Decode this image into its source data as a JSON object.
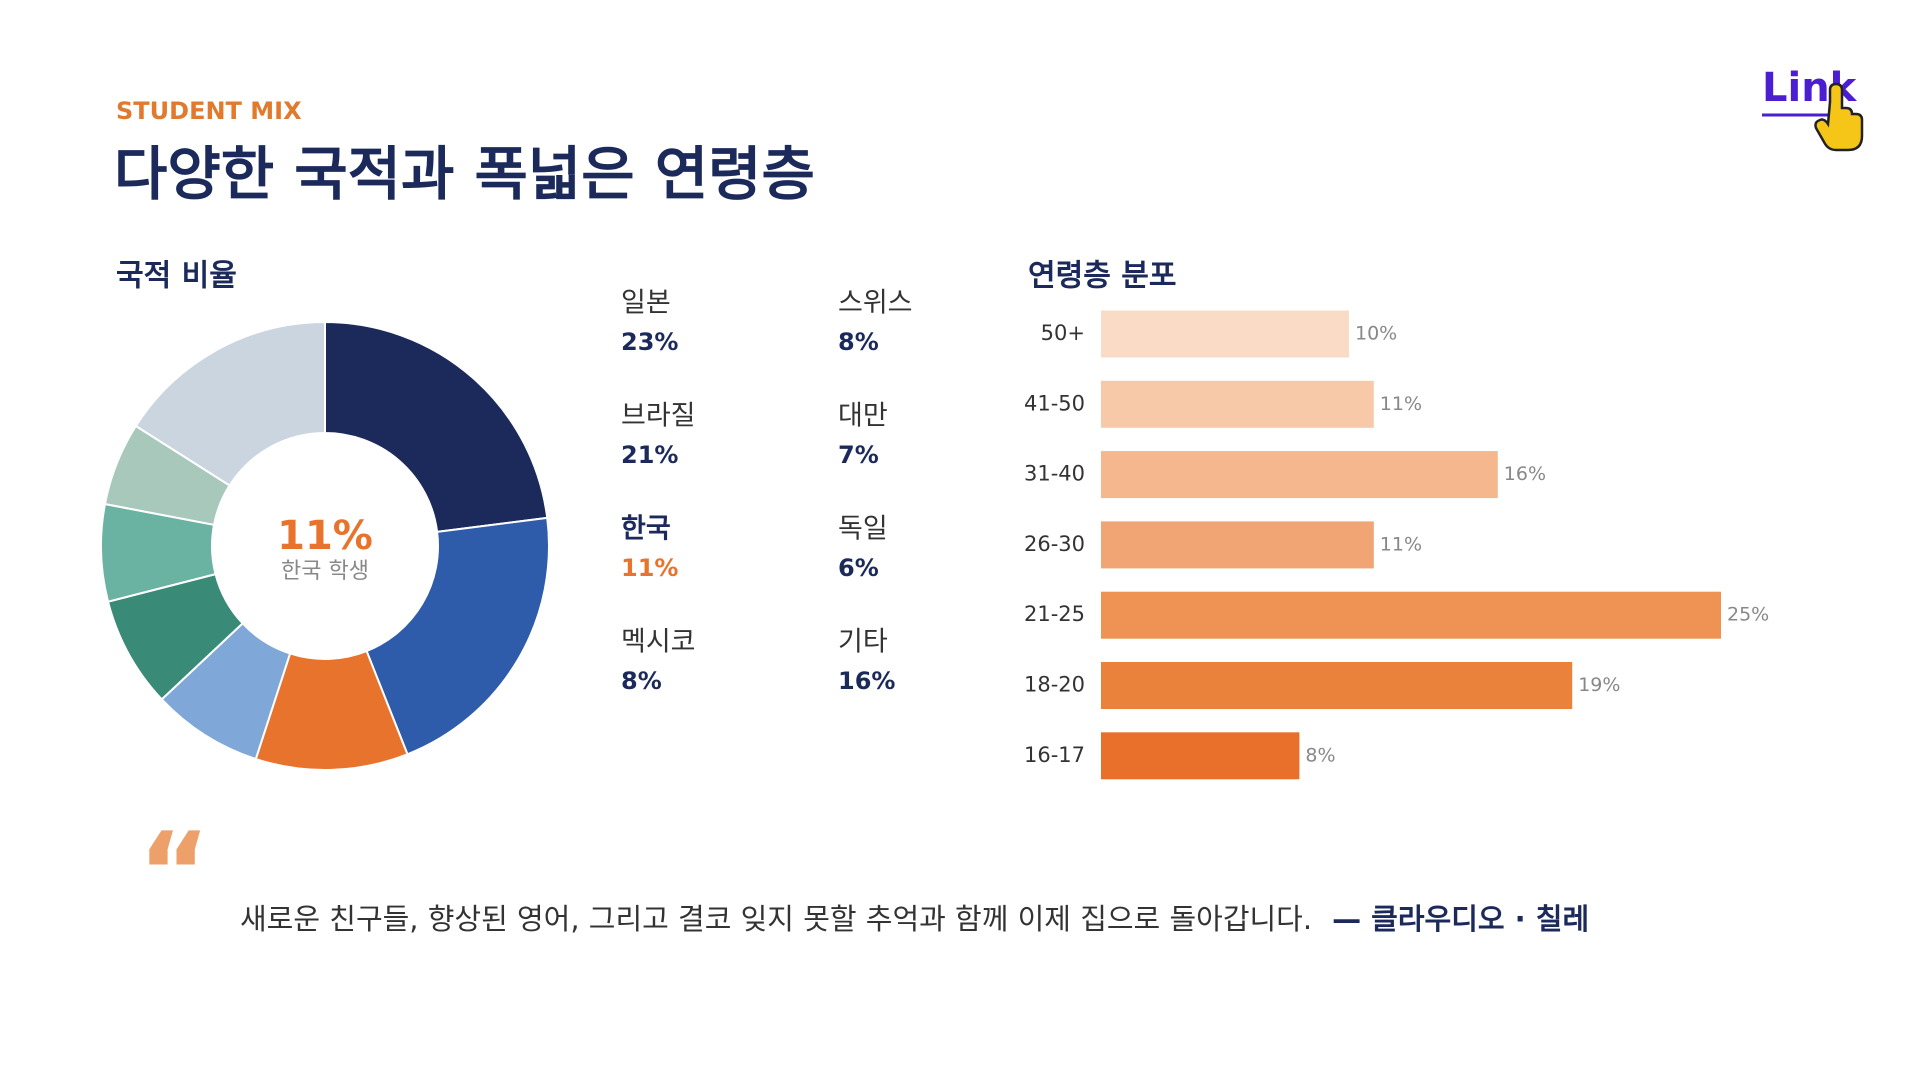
{
  "kicker": "STUDENT MIX",
  "title": "다양한 국적과 폭넓은 연령층",
  "link": "Link",
  "quote": {
    "mark": "“",
    "text": "새로운 친구들, 향상된 영어, 그리고 결코 잊지 못할 추억과 함께 이제 집으로 돌아갑니다.",
    "attribution": "— 클라우디오 · 칠레"
  },
  "chart_data": [
    {
      "type": "donut",
      "title": "국적 비율",
      "categories": [
        "일본",
        "브라질",
        "한국",
        "멕시코",
        "스위스",
        "대만",
        "독일",
        "기타"
      ],
      "values": [
        23,
        21,
        11,
        8,
        8,
        7,
        6,
        16
      ],
      "value_labels": [
        "23%",
        "21%",
        "11%",
        "8%",
        "8%",
        "7%",
        "6%",
        "16%"
      ],
      "colors": [
        "#1b2a5a",
        "#2e5caa",
        "#e8732c",
        "#7fa7d8",
        "#3a8a78",
        "#6ab3a2",
        "#a8c8bc",
        "#cbd5df"
      ],
      "highlight": 2,
      "center_label": "한국 학생"
    },
    {
      "type": "hbar",
      "title": "연령층 분포",
      "categories": [
        "50+",
        "41-50",
        "31-40",
        "26-30",
        "21-25",
        "18-20",
        "16-17"
      ],
      "values": [
        10,
        11,
        16,
        11,
        25,
        19,
        8
      ],
      "value_labels": [
        "10%",
        "11%",
        "16%",
        "11%",
        "25%",
        "19%",
        "8%"
      ],
      "colors": [
        "#fadcc6",
        "#f7c9a8",
        "#f4b78e",
        "#f1a574",
        "#ee9353",
        "#eb823c",
        "#e8702a"
      ]
    }
  ]
}
